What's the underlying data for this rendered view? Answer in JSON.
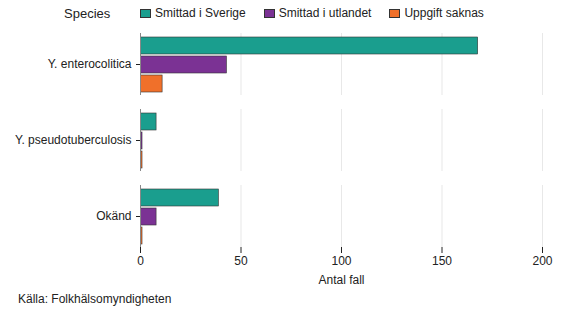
{
  "chart_data": {
    "type": "bar",
    "orientation": "horizontal",
    "ylabel": "Species",
    "xlabel": "Antal fall",
    "caption": "Källa: Folkhälsomyndigheten",
    "categories": [
      "Y. enterocolitica",
      "Y. pseudotuberculosis",
      "Okänd"
    ],
    "series": [
      {
        "name": "Smittad i Sverige",
        "color": "#1a9e8e",
        "values": [
          168,
          8,
          39
        ]
      },
      {
        "name": "Smittad i utlandet",
        "color": "#7b3294",
        "values": [
          43,
          1,
          8
        ]
      },
      {
        "name": "Uppgift saknas",
        "color": "#f0702a",
        "values": [
          11,
          1,
          1
        ]
      }
    ],
    "xlim": [
      0,
      200
    ],
    "xticks": [
      0,
      50,
      100,
      150,
      200
    ],
    "grid": true,
    "legend": "top"
  }
}
